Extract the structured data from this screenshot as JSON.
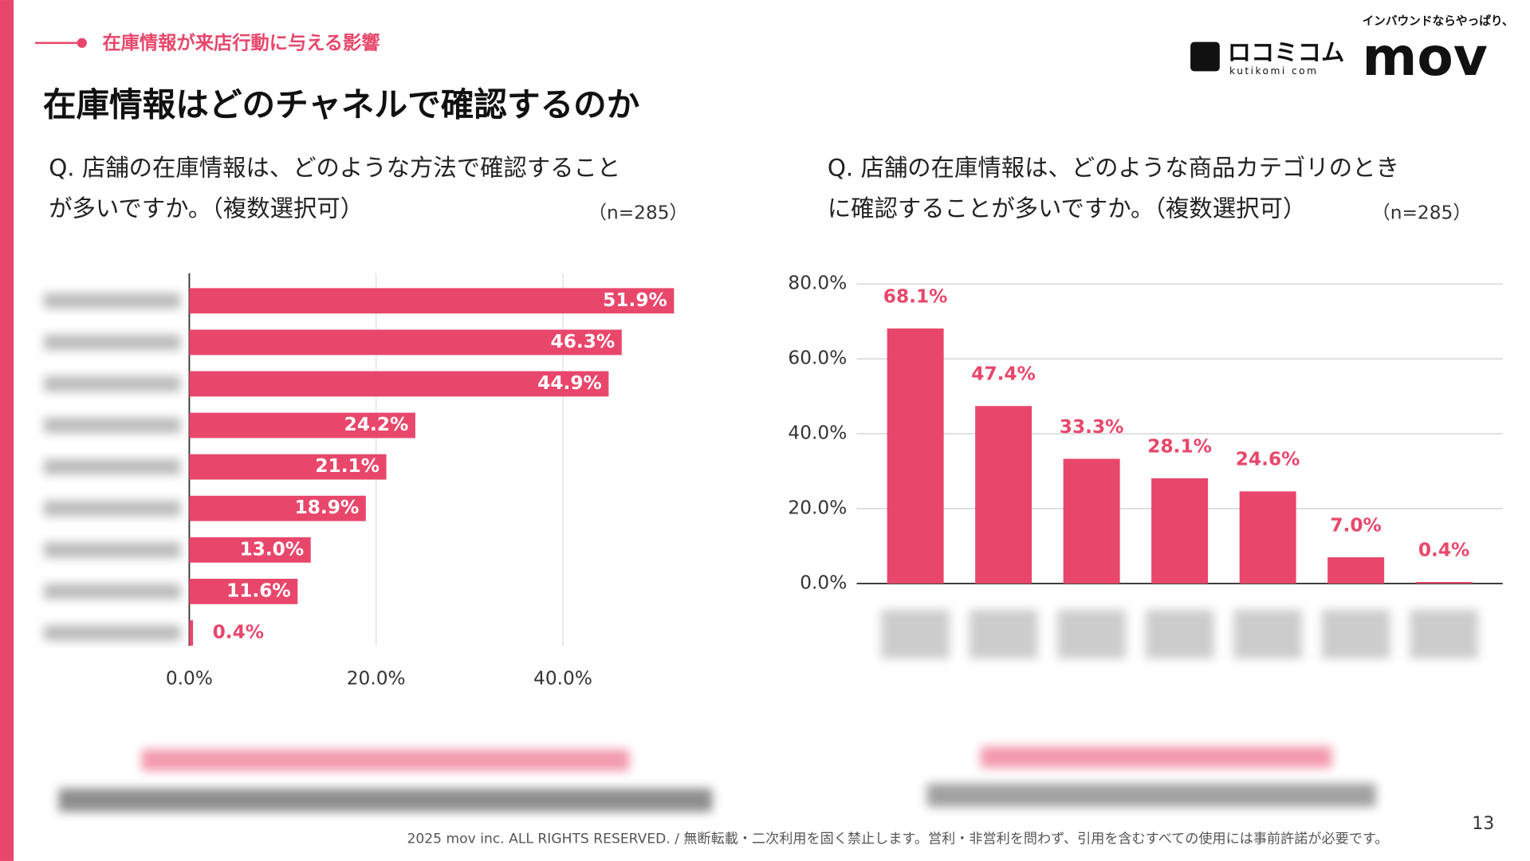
{
  "slide": {
    "section": "在庫情報が来店行動に与える影響",
    "title": "在庫情報はどのチャネルで確認するのか",
    "logo_tagline": "インバウンドならやっぱり、",
    "logo_brand": "mov",
    "logo_kutikomi": "ロコミコム",
    "logo_kutikomi_sub": "kutikomi com",
    "footer": "2025 mov inc. ALL RIGHTS RESERVED. / 無断転載・二次利用を固く禁止します。営利・非営利を問わず、引用を含むすべての使用には事前許諾が必要です。",
    "page_number": "13"
  },
  "chart_data": [
    {
      "type": "hbar",
      "question": [
        "Q. 店舗の在庫情報は、どのような方法で確認すること",
        "が多いですか。（複数選択可）"
      ],
      "n_label": "（n=285）",
      "categories": [
        null,
        null,
        null,
        null,
        null,
        null,
        null,
        null,
        null
      ],
      "values": [
        51.9,
        46.3,
        44.9,
        24.2,
        21.1,
        18.9,
        13.0,
        11.6,
        0.4
      ],
      "value_labels": [
        "51.9%",
        "46.3%",
        "44.9%",
        "24.2%",
        "21.1%",
        "18.9%",
        "13.0%",
        "11.6%",
        "0.4%"
      ],
      "color": "#e8476b",
      "xlim": [
        0,
        56
      ],
      "xticks": [
        {
          "value": 0,
          "label": "0.0%"
        },
        {
          "value": 20,
          "label": "20.0%"
        },
        {
          "value": 40,
          "label": "40.0%"
        }
      ],
      "grid": true
    },
    {
      "type": "bar",
      "question": [
        "Q. 店舗の在庫情報は、どのような商品カテゴリのとき",
        "に確認することが多いですか。（複数選択可）"
      ],
      "n_label": "（n=285）",
      "categories": [
        null,
        null,
        null,
        null,
        null,
        null,
        null
      ],
      "values": [
        68.1,
        47.4,
        33.3,
        28.1,
        24.6,
        7.0,
        0.4
      ],
      "value_labels": [
        "68.1%",
        "47.4%",
        "33.3%",
        "28.1%",
        "24.6%",
        "7.0%",
        "0.4%"
      ],
      "color": "#e8476b",
      "ylim": [
        0,
        80
      ],
      "yticks": [
        {
          "value": 0,
          "label": "0.0%"
        },
        {
          "value": 20,
          "label": "20.0%"
        },
        {
          "value": 40,
          "label": "40.0%"
        },
        {
          "value": 60,
          "label": "60.0%"
        },
        {
          "value": 80,
          "label": "80.0%"
        }
      ],
      "grid": true
    }
  ]
}
